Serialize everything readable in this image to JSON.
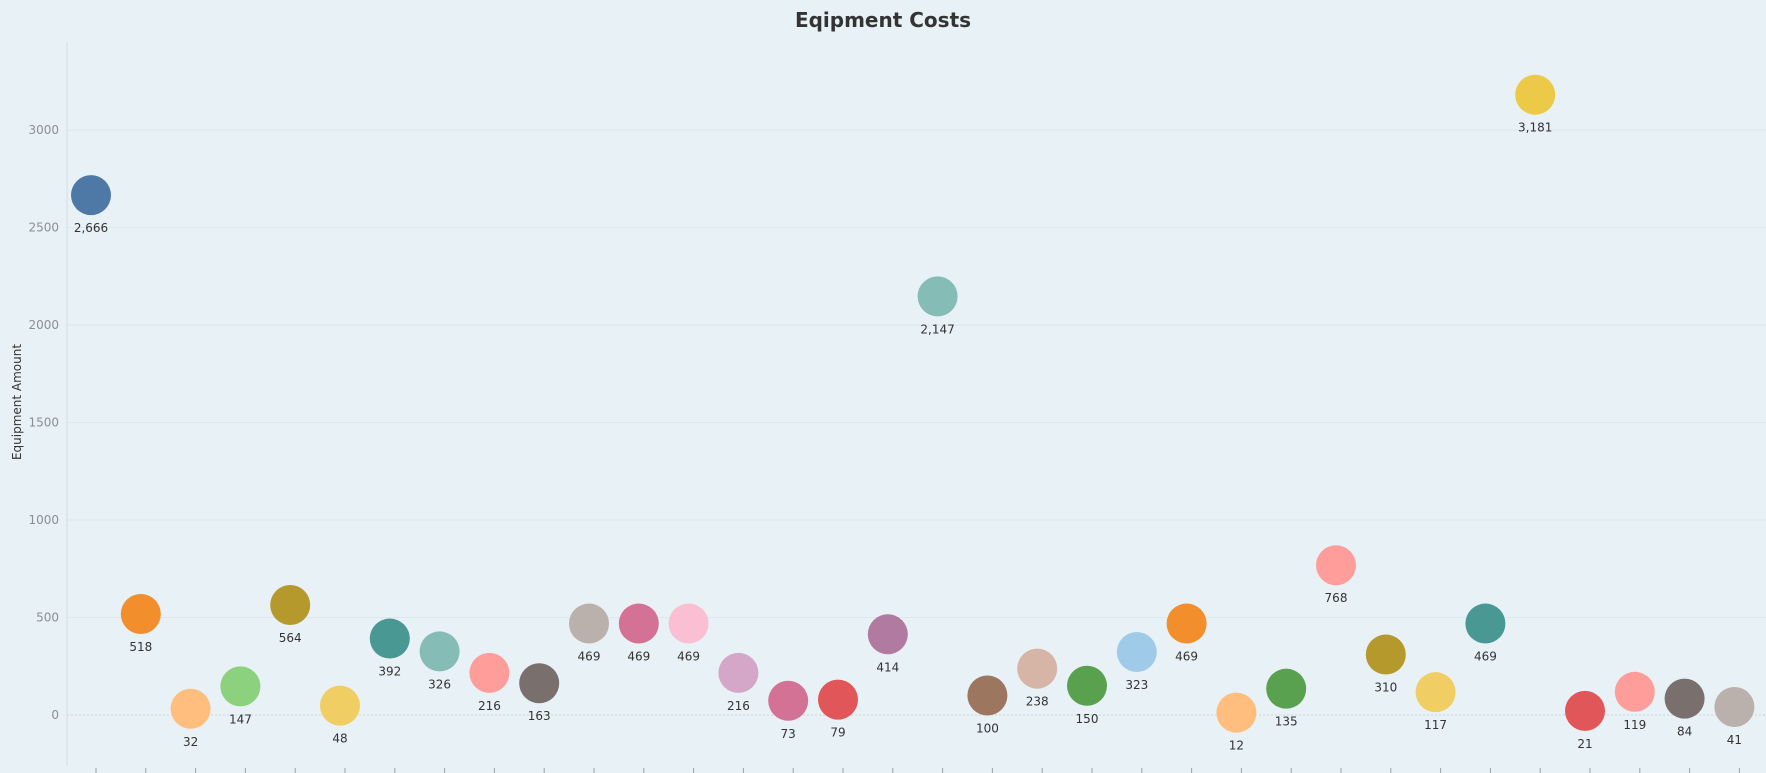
{
  "chart_data": {
    "type": "scatter",
    "title": "Eqipment Costs",
    "ylabel": "Equipment Amount",
    "xlabel": "",
    "ylim": [
      -300,
      3450
    ],
    "y_ticks": [
      0,
      500,
      1000,
      1500,
      2000,
      2500,
      3000
    ],
    "grid": true,
    "legend": "none",
    "series": [
      {
        "values": [
          2666,
          518,
          32,
          147,
          564,
          48,
          392,
          326,
          216,
          163,
          469,
          469,
          469,
          216,
          73,
          79,
          414,
          2147,
          100,
          238,
          150,
          323,
          469,
          12,
          135,
          768,
          310,
          117,
          469,
          3181,
          21,
          119,
          84,
          41
        ]
      }
    ],
    "value_labels": [
      "2,666",
      "518",
      "32",
      "147",
      "564",
      "48",
      "392",
      "326",
      "216",
      "163",
      "469",
      "469",
      "469",
      "216",
      "73",
      "79",
      "414",
      "2,147",
      "100",
      "238",
      "150",
      "323",
      "469",
      "12",
      "135",
      "768",
      "310",
      "117",
      "469",
      "3,181",
      "21",
      "119",
      "84",
      "41"
    ],
    "colors": [
      "#4e79a7",
      "#f28e2b",
      "#ffbe7d",
      "#8cd17d",
      "#b6992d",
      "#f1ce63",
      "#499894",
      "#86bcb6",
      "#ff9d9a",
      "#79706e",
      "#bab0ac",
      "#d37295",
      "#fabfd2",
      "#d4a6c8",
      "#d37295",
      "#e15759",
      "#b07aa1",
      "#86bcb6",
      "#9d7660",
      "#d7b5a6",
      "#59a14f",
      "#a0cbe8",
      "#f28e2b",
      "#ffbe7d",
      "#59a14f",
      "#ff9d9a",
      "#b6992d",
      "#f1ce63",
      "#499894",
      "#edc948",
      "#e15759",
      "#ff9d9a",
      "#79706e",
      "#bab0ac"
    ]
  }
}
